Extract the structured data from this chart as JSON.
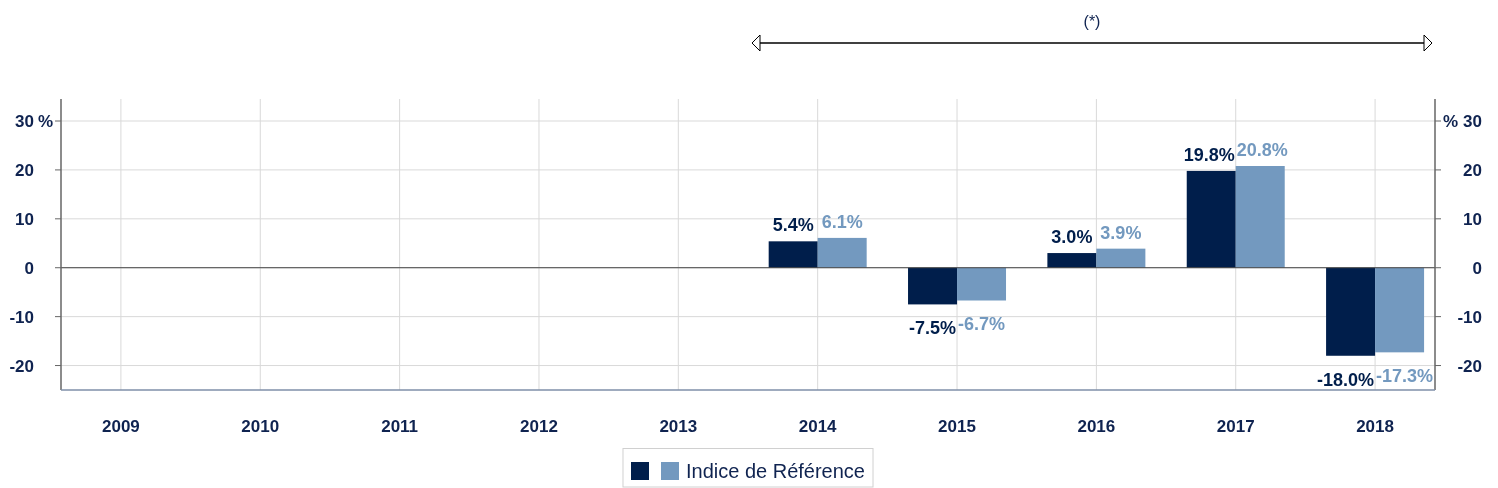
{
  "chart_data": {
    "type": "bar",
    "annotations": [
      "(*)"
    ],
    "ylabel": "%",
    "y2label": "%",
    "categories": [
      "2009",
      "2010",
      "2011",
      "2012",
      "2013",
      "2014",
      "2015",
      "2016",
      "2017",
      "2018"
    ],
    "series": [
      {
        "color": "#001e4b",
        "values": [
          null,
          null,
          null,
          null,
          null,
          5.4,
          -7.5,
          3.0,
          19.8,
          -18.0
        ],
        "value_labels": [
          null,
          null,
          null,
          null,
          null,
          "5.4%",
          "-7.5%",
          "3.0%",
          "19.8%",
          "-18.0%"
        ]
      },
      {
        "name": "Indice de Référence",
        "color": "#7399bf",
        "values": [
          null,
          null,
          null,
          null,
          null,
          6.1,
          -6.7,
          3.9,
          20.8,
          -17.3
        ],
        "value_labels": [
          null,
          null,
          null,
          null,
          null,
          "6.1%",
          "-6.7%",
          "3.9%",
          "20.8%",
          "-17.3%"
        ]
      }
    ],
    "ylim": [
      -25,
      34.5
    ],
    "yticks": [
      -20,
      -10,
      0,
      10,
      20,
      30
    ],
    "y2lim": [
      -25,
      34.5
    ],
    "y2ticks": [
      -20,
      -10,
      0,
      10,
      20,
      30
    ],
    "grid": true,
    "legend": "bottom"
  }
}
